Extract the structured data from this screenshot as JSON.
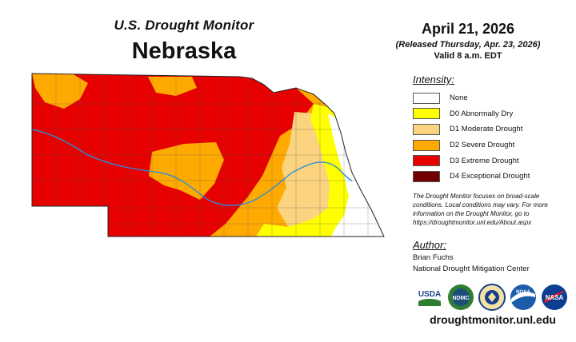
{
  "header": {
    "subtitle": "U.S. Drought Monitor",
    "state": "Nebraska"
  },
  "dates": {
    "date": "April 21, 2026",
    "released": "(Released Thursday, Apr. 23, 2026)",
    "valid": "Valid 8 a.m. EDT"
  },
  "legend": {
    "title": "Intensity:",
    "items": [
      {
        "label": "None",
        "color": "#ffffff"
      },
      {
        "label": "D0 Abnormally Dry",
        "color": "#ffff00"
      },
      {
        "label": "D1 Moderate Drought",
        "color": "#fcd37f"
      },
      {
        "label": "D2 Severe Drought",
        "color": "#ffaa00"
      },
      {
        "label": "D3 Extreme Drought",
        "color": "#e60000"
      },
      {
        "label": "D4 Exceptional Drought",
        "color": "#730000"
      }
    ]
  },
  "disclaimer": "The Drought Monitor focuses on broad-scale conditions. Local conditions may vary. For more information on the Drought Monitor, go to https://droughtmonitor.unl.edu/About.aspx",
  "author": {
    "title": "Author:",
    "name": "Brian Fuchs",
    "org": "National Drought Mitigation Center"
  },
  "logos": {
    "usda": "USDA",
    "ndmc": "NDMC",
    "noaa": "NOAA",
    "nasa": "NASA"
  },
  "website": "droughtmonitor.unl.edu"
}
